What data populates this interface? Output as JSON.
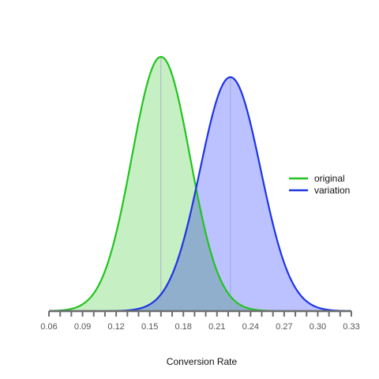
{
  "chart_data": {
    "type": "area",
    "title": "",
    "xlabel": "Conversion Rate",
    "ylabel": "",
    "xlim": [
      0.06,
      0.33
    ],
    "ticks": [
      "0.06",
      "0.09",
      "0.12",
      "0.15",
      "0.18",
      "0.21",
      "0.24",
      "0.27",
      "0.30",
      "0.33"
    ],
    "tick_values": [
      0.06,
      0.09,
      0.12,
      0.15,
      0.18,
      0.21,
      0.24,
      0.27,
      0.3,
      0.33
    ],
    "minor_tick_step": 0.01,
    "grid": false,
    "legend_position": "right",
    "series": [
      {
        "name": "original",
        "mean": 0.16,
        "sd": 0.026,
        "peak": 1.0,
        "line_color": "#22c41e",
        "fill_color": "#c6efc3"
      },
      {
        "name": "variation",
        "mean": 0.222,
        "sd": 0.027,
        "peak": 0.92,
        "line_color": "#1f34e3",
        "fill_color": "#bcc2ff"
      }
    ],
    "overlap_color": "#8fafcd",
    "mean_line_color": "#9aa3c8"
  }
}
